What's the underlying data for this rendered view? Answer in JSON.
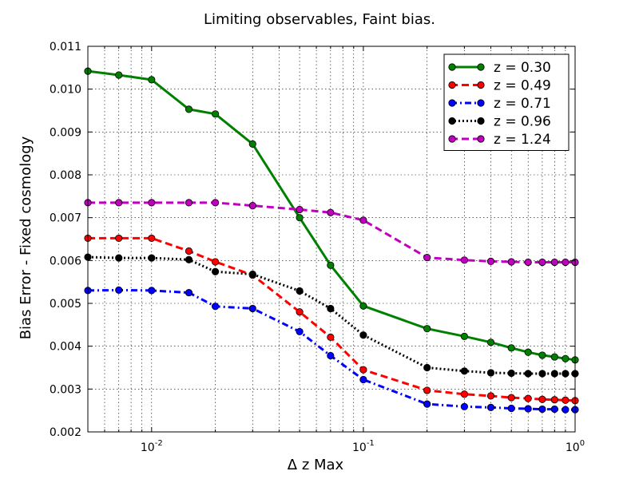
{
  "chart_data": {
    "type": "line",
    "title": "Limiting observables, Faint bias.",
    "xlabel": "Δ z Max",
    "ylabel": "Bias Error - Fixed cosmology",
    "xscale": "log",
    "xlim": [
      0.005,
      1.0
    ],
    "ylim": [
      0.002,
      0.011
    ],
    "grid": true,
    "legend_position": "top-right",
    "x_ticks": [
      {
        "value": 0.01,
        "base": "10",
        "exp": "-2"
      },
      {
        "value": 0.1,
        "base": "10",
        "exp": "-1"
      },
      {
        "value": 1.0,
        "base": "10",
        "exp": "0"
      }
    ],
    "y_ticks": [
      "0.002",
      "0.003",
      "0.004",
      "0.005",
      "0.006",
      "0.007",
      "0.008",
      "0.009",
      "0.010",
      "0.011"
    ],
    "x": [
      0.005,
      0.007,
      0.01,
      0.015,
      0.02,
      0.03,
      0.05,
      0.07,
      0.1,
      0.2,
      0.3,
      0.4,
      0.5,
      0.6,
      0.7,
      0.8,
      0.9,
      1.0
    ],
    "series": [
      {
        "name": "z = 0.30",
        "color": "#008000",
        "dash": "solid",
        "values": [
          0.01042,
          0.01033,
          0.01022,
          0.00953,
          0.00942,
          0.00872,
          0.007,
          0.00589,
          0.00494,
          0.00441,
          0.00423,
          0.00409,
          0.00396,
          0.00386,
          0.00379,
          0.00375,
          0.00371,
          0.00368
        ]
      },
      {
        "name": "z = 0.49",
        "color": "#ff0000",
        "dash": "dashed",
        "values": [
          0.00652,
          0.00652,
          0.00652,
          0.00622,
          0.00597,
          0.00566,
          0.0048,
          0.00421,
          0.00345,
          0.00297,
          0.00288,
          0.00284,
          0.0028,
          0.00278,
          0.00276,
          0.00275,
          0.00274,
          0.00273
        ]
      },
      {
        "name": "z = 0.71",
        "color": "#0000ff",
        "dash": "dashdot",
        "values": [
          0.0053,
          0.00531,
          0.0053,
          0.00525,
          0.00493,
          0.00488,
          0.00434,
          0.00378,
          0.00322,
          0.00265,
          0.00259,
          0.00257,
          0.00255,
          0.00254,
          0.00253,
          0.00253,
          0.00252,
          0.00252
        ]
      },
      {
        "name": "z = 0.96",
        "color": "#000000",
        "dash": "dotted",
        "values": [
          0.00608,
          0.00606,
          0.00606,
          0.00602,
          0.00574,
          0.00568,
          0.00529,
          0.00488,
          0.00426,
          0.0035,
          0.00342,
          0.00338,
          0.00337,
          0.00336,
          0.00336,
          0.00336,
          0.00336,
          0.00336
        ]
      },
      {
        "name": "z = 1.24",
        "color": "#bf00bf",
        "dash": "dashed",
        "values": [
          0.00735,
          0.00735,
          0.00735,
          0.00735,
          0.00735,
          0.00728,
          0.00719,
          0.00712,
          0.00694,
          0.00607,
          0.00601,
          0.00598,
          0.00597,
          0.00596,
          0.00596,
          0.00596,
          0.00596,
          0.00596
        ]
      }
    ]
  }
}
